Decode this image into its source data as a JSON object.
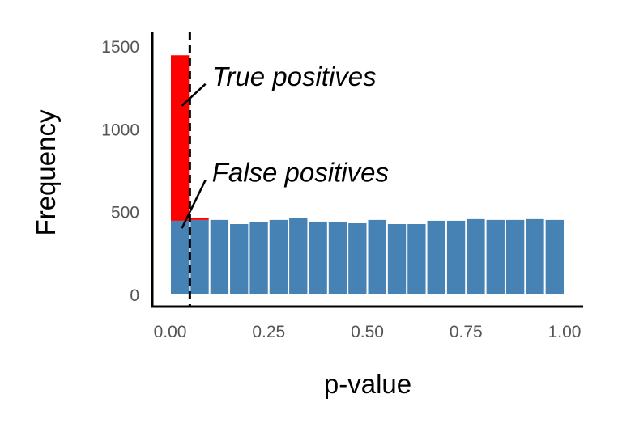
{
  "chart_data": {
    "type": "bar",
    "xlabel": "p-value",
    "ylabel": "Frequency",
    "xlim": [
      -0.025,
      1.025
    ],
    "ylim": [
      0,
      1500
    ],
    "xticks": [
      0.0,
      0.25,
      0.5,
      0.75,
      1.0
    ],
    "xtick_labels": [
      "0.00",
      "0.25",
      "0.50",
      "0.75",
      "1.00"
    ],
    "yticks": [
      0,
      500,
      1000,
      1500
    ],
    "ytick_labels": [
      "0",
      "500",
      "1000",
      "1500"
    ],
    "bin_width": 0.05,
    "bin_centers": [
      0.025,
      0.075,
      0.125,
      0.175,
      0.225,
      0.275,
      0.325,
      0.375,
      0.425,
      0.475,
      0.525,
      0.575,
      0.625,
      0.675,
      0.725,
      0.775,
      0.825,
      0.875,
      0.925,
      0.975
    ],
    "series": [
      {
        "values": [
          445,
          450,
          450,
          425,
          435,
          450,
          460,
          440,
          435,
          430,
          450,
          425,
          425,
          445,
          445,
          455,
          450,
          450,
          455,
          450
        ]
      },
      {
        "values": [
          1000,
          10,
          0,
          0,
          0,
          0,
          0,
          0,
          0,
          0,
          0,
          0,
          0,
          0,
          0,
          0,
          0,
          0,
          0,
          0
        ]
      }
    ],
    "threshold_line": {
      "x": 0.05,
      "style": "dashed"
    },
    "annotations": [
      {
        "text": "True positives",
        "x": 0.1,
        "y": 1320,
        "arrow_to": [
          0.03,
          1140
        ]
      },
      {
        "text": "False positives",
        "x": 0.1,
        "y": 740,
        "arrow_to": [
          0.03,
          400
        ]
      }
    ],
    "colors": {
      "null": "#4682B4",
      "true": "#FF0000",
      "axis": "#000000",
      "tick_text": "#555555"
    },
    "grid": false,
    "legend": "none"
  }
}
